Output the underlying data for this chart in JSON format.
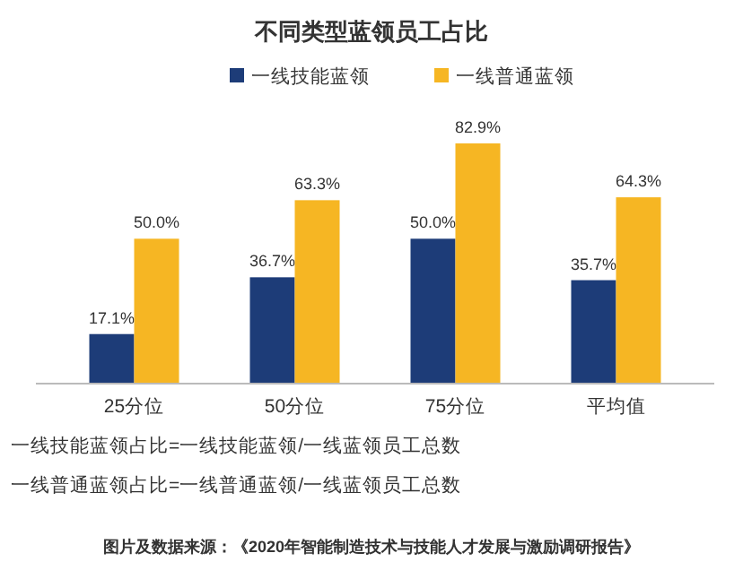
{
  "chart_data": {
    "type": "bar",
    "title": "不同类型蓝领员工占比",
    "categories": [
      "25分位",
      "50分位",
      "75分位",
      "平均值"
    ],
    "series": [
      {
        "name": "一线技能蓝领",
        "color": "#1d3c78",
        "values": [
          17.1,
          36.7,
          50.0,
          35.7
        ],
        "value_labels": [
          "17.1%",
          "36.7%",
          "50.0%",
          "35.7%"
        ]
      },
      {
        "name": "一线普通蓝领",
        "color": "#f6b623",
        "values": [
          50.0,
          63.3,
          82.9,
          64.3
        ],
        "value_labels": [
          "50.0%",
          "63.3%",
          "82.9%",
          "64.3%"
        ]
      }
    ],
    "legend": "top right",
    "annotations": [
      "一线技能蓝领占比=一线技能蓝领/一线蓝领员工总数",
      "一线普通蓝领占比=一线普通蓝领/一线蓝领员工总数",
      "图片及数据来源：《2020年智能制造技术与技能人才发展与激励调研报告》"
    ]
  }
}
